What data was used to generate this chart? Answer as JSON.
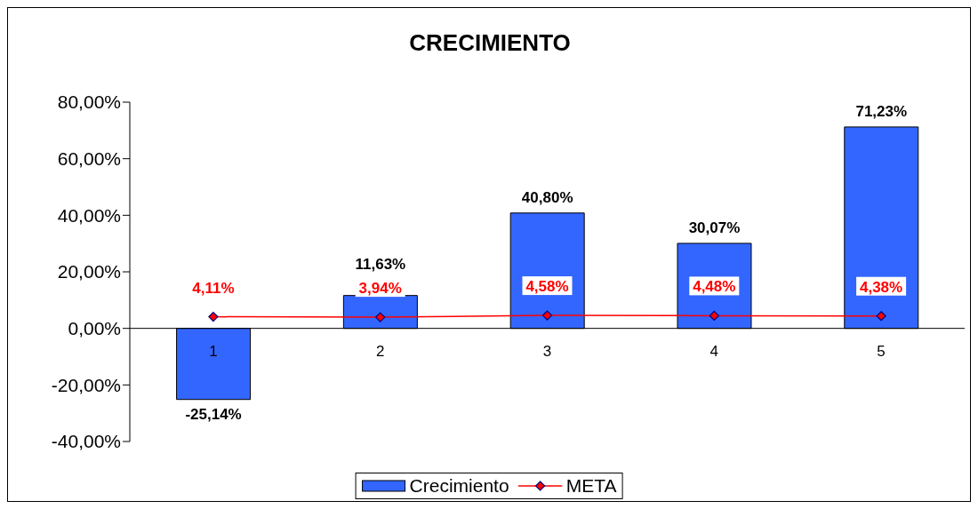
{
  "chart_data": {
    "type": "bar",
    "title": "CRECIMIENTO",
    "categories": [
      "1",
      "2",
      "3",
      "4",
      "5"
    ],
    "series": [
      {
        "name": "Crecimiento",
        "color": "#3366ff",
        "values": [
          -25.14,
          11.63,
          40.8,
          30.07,
          71.23
        ],
        "value_labels": [
          "-25,14%",
          "11,63%",
          "40,80%",
          "30,07%",
          "71,23%"
        ]
      },
      {
        "name": "META",
        "type": "line",
        "color": "#ff0000",
        "values": [
          4.11,
          3.94,
          4.58,
          4.48,
          4.38
        ],
        "value_labels": [
          "4,11%",
          "3,94%",
          "4,58%",
          "4,48%",
          "4,38%"
        ]
      }
    ],
    "ylim": [
      -40,
      80
    ],
    "yticks": [
      {
        "value": -40,
        "label": "-40,00%"
      },
      {
        "value": -20,
        "label": "-20,00%"
      },
      {
        "value": 0,
        "label": "0,00%"
      },
      {
        "value": 20,
        "label": "20,00%"
      },
      {
        "value": 40,
        "label": "40,00%"
      },
      {
        "value": 60,
        "label": "60,00%"
      },
      {
        "value": 80,
        "label": "80,00%"
      }
    ],
    "marker": "diamond",
    "legend": "bottom",
    "grid": false
  }
}
